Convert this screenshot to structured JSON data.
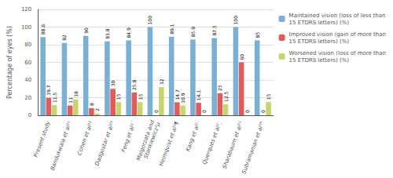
{
  "chart_data": {
    "type": "bar",
    "categories": [
      "Present study",
      "Bandukwala et al²¹",
      "Cohen et al²²",
      "Dadgostar et al²³",
      "Feng et al²´",
      "Malgorzata and\nStankiewicz²µ",
      "Heimqvist et al²¶",
      "Kang et al²·",
      "Querques et al²¸",
      "Sharabaum et al²¹",
      "Subramanian et al³°"
    ],
    "series": [
      {
        "name": "Maintained vision (loss of less than\n15 ETDRS letters) (%)",
        "color": "#7bafd4",
        "values": [
          88.6,
          82,
          90,
          83.8,
          84.9,
          100,
          89.1,
          85.9,
          87.5,
          100,
          85
        ]
      },
      {
        "name": "Improved vision (gain of more than\n15 ETDRS letters) (%)",
        "color": "#e05c5c",
        "values": [
          19.7,
          11,
          8,
          30,
          25.8,
          0,
          14.7,
          14.1,
          25,
          60,
          0
        ]
      },
      {
        "name": "Worsened vision (loss of more than\n15 ETDRS letters) (%)",
        "color": "#c8d46e",
        "values": [
          11.5,
          18,
          2,
          15,
          15,
          32,
          10.9,
          0,
          12.5,
          0,
          15
        ]
      }
    ],
    "ylabel": "Percentage of eyes (%)",
    "ylim": [
      0,
      120
    ],
    "yticks": [
      0,
      20,
      40,
      60,
      80,
      100,
      120
    ],
    "grid": true,
    "legend": "upper right",
    "data_labels": true
  }
}
